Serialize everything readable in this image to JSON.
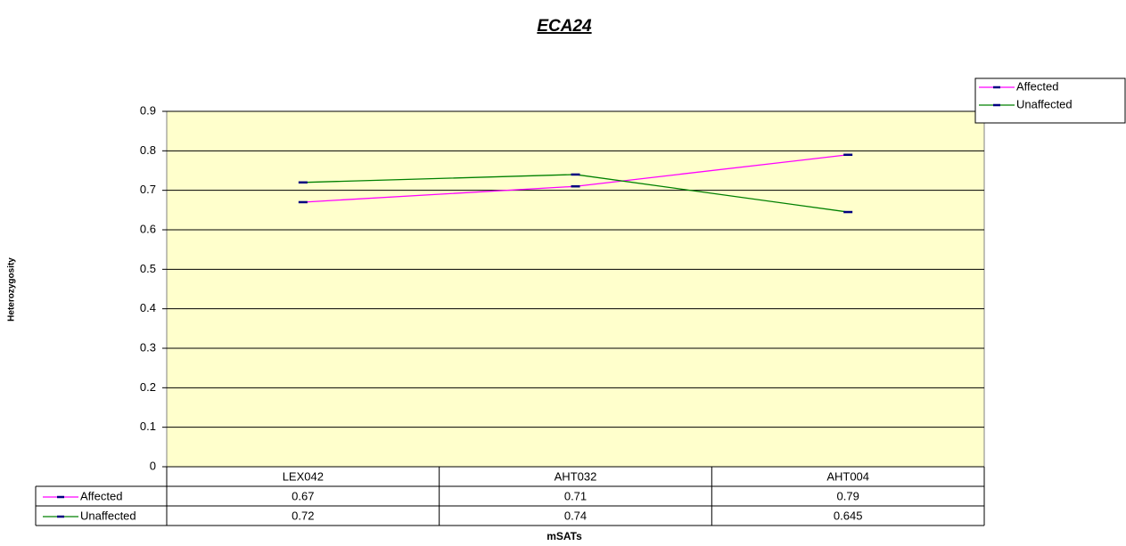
{
  "chart_data": {
    "type": "line",
    "title": "ECA24",
    "x_label": "mSATs",
    "y_label": "Heterozygosity",
    "categories": [
      "LEX042",
      "AHT032",
      "AHT004"
    ],
    "series": [
      {
        "name": "Affected",
        "color": "#ff00ff",
        "values": [
          0.67,
          0.71,
          0.79
        ]
      },
      {
        "name": "Unaffected",
        "color": "#008000",
        "values": [
          0.72,
          0.74,
          0.645
        ]
      }
    ],
    "marker_color": "#000080",
    "ylim": [
      0,
      0.9
    ],
    "yticks": [
      0,
      0.1,
      0.2,
      0.3,
      0.4,
      0.5,
      0.6,
      0.7,
      0.8,
      0.9
    ],
    "grid": true,
    "legend": "top-right",
    "plot_background": "#ffffcc"
  }
}
